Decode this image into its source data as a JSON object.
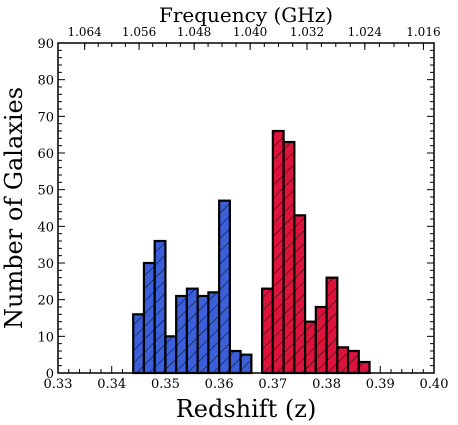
{
  "chart_data": {
    "type": "bar",
    "title": "",
    "xlabel": "Redshift (z)",
    "ylabel": "Number of Galaxies",
    "top_xlabel": "Frequency (GHz)",
    "xlim": [
      0.33,
      0.4
    ],
    "ylim": [
      0,
      90
    ],
    "x_ticks": [
      "0.33",
      "0.34",
      "0.35",
      "0.36",
      "0.37",
      "0.38",
      "0.39",
      "0.40"
    ],
    "y_ticks": [
      "0",
      "10",
      "20",
      "30",
      "40",
      "50",
      "60",
      "70",
      "80",
      "90"
    ],
    "top_ticks": [
      {
        "label": "1.064",
        "z": 0.33496
      },
      {
        "label": "1.056",
        "z": 0.3451
      },
      {
        "label": "1.048",
        "z": 0.35534
      },
      {
        "label": "1.040",
        "z": 0.36576
      },
      {
        "label": "1.032",
        "z": 0.37636
      },
      {
        "label": "1.024",
        "z": 0.38712
      },
      {
        "label": "1.016",
        "z": 0.39803
      }
    ],
    "grid": false,
    "series": [
      {
        "color": "#3a5fd9",
        "hatch": "diagonal",
        "bins": [
          {
            "start": 0.344,
            "end": 0.346,
            "value": 16
          },
          {
            "start": 0.346,
            "end": 0.348,
            "value": 30
          },
          {
            "start": 0.348,
            "end": 0.35,
            "value": 36
          },
          {
            "start": 0.35,
            "end": 0.352,
            "value": 10
          },
          {
            "start": 0.352,
            "end": 0.354,
            "value": 21
          },
          {
            "start": 0.354,
            "end": 0.356,
            "value": 23
          },
          {
            "start": 0.356,
            "end": 0.358,
            "value": 21
          },
          {
            "start": 0.358,
            "end": 0.36,
            "value": 22
          },
          {
            "start": 0.36,
            "end": 0.362,
            "value": 47
          },
          {
            "start": 0.362,
            "end": 0.364,
            "value": 6
          },
          {
            "start": 0.364,
            "end": 0.366,
            "value": 5
          }
        ]
      },
      {
        "color": "#dc143c",
        "hatch": "diagonal",
        "bins": [
          {
            "start": 0.368,
            "end": 0.37,
            "value": 23
          },
          {
            "start": 0.37,
            "end": 0.372,
            "value": 66
          },
          {
            "start": 0.372,
            "end": 0.374,
            "value": 63
          },
          {
            "start": 0.374,
            "end": 0.376,
            "value": 43
          },
          {
            "start": 0.376,
            "end": 0.378,
            "value": 14
          },
          {
            "start": 0.378,
            "end": 0.38,
            "value": 18
          },
          {
            "start": 0.38,
            "end": 0.382,
            "value": 26
          },
          {
            "start": 0.382,
            "end": 0.384,
            "value": 7
          },
          {
            "start": 0.384,
            "end": 0.386,
            "value": 6
          },
          {
            "start": 0.386,
            "end": 0.388,
            "value": 3
          }
        ]
      }
    ]
  }
}
